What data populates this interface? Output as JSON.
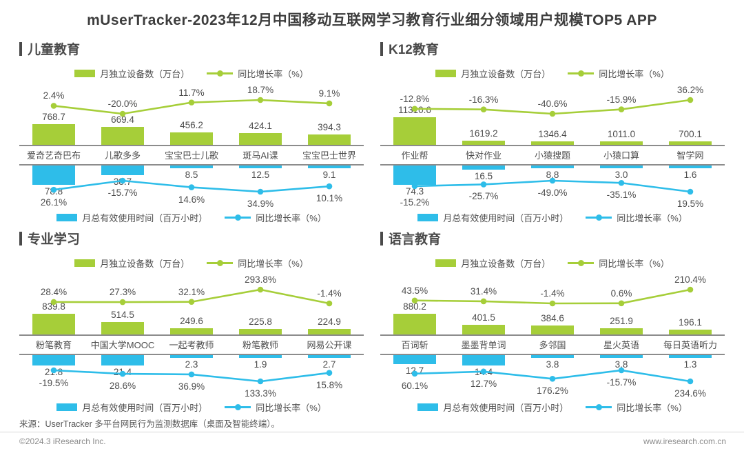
{
  "title": "mUserTracker-2023年12月中国移动互联网学习教育行业细分领域用户规模TOP5 APP",
  "legend": {
    "devices": "月独立设备数（万台）",
    "usage": "月总有效使用时间（百万小时）",
    "growth": "同比增长率（%）"
  },
  "colors": {
    "green": "#a6ce39",
    "blue": "#2ebde9"
  },
  "footer": {
    "source": "来源：UserTracker 多平台网民行为监测数据库（桌面及智能终端）。",
    "copyright": "©2024.3 iResearch Inc.",
    "website": "www.iresearch.com.cn"
  },
  "chart_data": [
    {
      "type": "bar",
      "section": "儿童教育",
      "categories": [
        "爱奇艺奇巴布",
        "儿歌多多",
        "宝宝巴士儿歌",
        "斑马AI课",
        "宝宝巴士世界"
      ],
      "series": [
        {
          "name": "月独立设备数（万台）",
          "type": "bar",
          "values": [
            768.7,
            669.4,
            456.2,
            424.1,
            394.3
          ]
        },
        {
          "name": "同比增长率（%）",
          "type": "line",
          "values": [
            2.4,
            -20.0,
            11.7,
            18.7,
            9.1
          ]
        },
        {
          "name": "月总有效使用时间（百万小时）",
          "type": "bar-mirrored",
          "values": [
            78.8,
            38.7,
            8.5,
            12.5,
            9.1
          ]
        },
        {
          "name": "同比增长率（%）",
          "type": "line-mirrored",
          "values": [
            26.1,
            -15.7,
            14.6,
            34.9,
            10.1
          ]
        }
      ]
    },
    {
      "type": "bar",
      "section": "K12教育",
      "categories": [
        "作业帮",
        "快对作业",
        "小猿搜题",
        "小猿口算",
        "智学网"
      ],
      "series": [
        {
          "name": "月独立设备数（万台）",
          "type": "bar",
          "values": [
            11310.6,
            1619.2,
            1346.4,
            1011.0,
            700.1
          ]
        },
        {
          "name": "同比增长率（%）",
          "type": "line",
          "values": [
            -12.8,
            -16.3,
            -40.6,
            -15.9,
            36.2
          ]
        },
        {
          "name": "月总有效使用时间（百万小时）",
          "type": "bar-mirrored",
          "values": [
            74.3,
            16.5,
            8.8,
            3.0,
            1.6
          ]
        },
        {
          "name": "同比增长率（%）",
          "type": "line-mirrored",
          "values": [
            -15.2,
            -25.7,
            -49.0,
            -35.1,
            19.5
          ]
        }
      ]
    },
    {
      "type": "bar",
      "section": "专业学习",
      "categories": [
        "粉笔教育",
        "中国大学MOOC",
        "一起考教师",
        "粉笔教师",
        "网易公开课"
      ],
      "series": [
        {
          "name": "月独立设备数（万台）",
          "type": "bar",
          "values": [
            839.8,
            514.5,
            249.6,
            225.8,
            224.9
          ]
        },
        {
          "name": "同比增长率（%）",
          "type": "line",
          "values": [
            28.4,
            27.3,
            32.1,
            293.8,
            -1.4
          ]
        },
        {
          "name": "月总有效使用时间（百万小时）",
          "type": "bar-mirrored",
          "values": [
            21.8,
            21.4,
            2.3,
            1.9,
            2.7
          ]
        },
        {
          "name": "同比增长率（%）",
          "type": "line-mirrored",
          "values": [
            -19.5,
            28.6,
            36.9,
            133.3,
            15.8
          ]
        }
      ]
    },
    {
      "type": "bar",
      "section": "语言教育",
      "categories": [
        "百词斩",
        "墨墨背单词",
        "多邻国",
        "星火英语",
        "每日英语听力"
      ],
      "series": [
        {
          "name": "月独立设备数（万台）",
          "type": "bar",
          "values": [
            880.2,
            401.5,
            384.6,
            251.9,
            196.1
          ]
        },
        {
          "name": "同比增长率（%）",
          "type": "line",
          "values": [
            43.5,
            31.4,
            -1.4,
            0.6,
            210.4
          ]
        },
        {
          "name": "月总有效使用时间（百万小时）",
          "type": "bar-mirrored",
          "values": [
            12.7,
            14.4,
            3.8,
            3.8,
            1.3
          ]
        },
        {
          "name": "同比增长率（%）",
          "type": "line-mirrored",
          "values": [
            60.1,
            12.7,
            176.2,
            -15.7,
            234.6
          ]
        }
      ]
    }
  ]
}
